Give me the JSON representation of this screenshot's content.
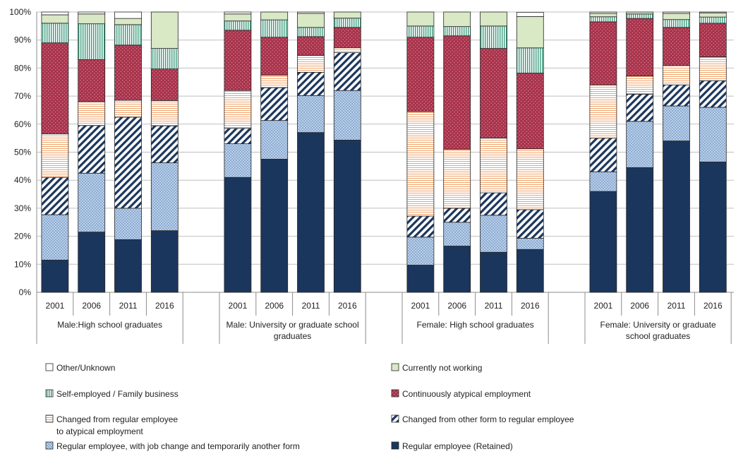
{
  "chart_data": {
    "type": "bar",
    "stacked": true,
    "percent": true,
    "ylim": [
      0,
      100
    ],
    "y_ticks": [
      "0%",
      "10%",
      "20%",
      "30%",
      "40%",
      "50%",
      "60%",
      "70%",
      "80%",
      "90%",
      "100%"
    ],
    "grid": true,
    "legend_position": "bottom",
    "groups": [
      {
        "label": "Male:High school graduates",
        "years": [
          "2001",
          "2006",
          "2011",
          "2016"
        ]
      },
      {
        "label": "Male: University or graduate school graduates",
        "label_lines": [
          "Male: University or graduate school",
          "graduates"
        ],
        "years": [
          "2001",
          "2006",
          "2011",
          "2016"
        ]
      },
      {
        "label": "Female: High school graduates",
        "years": [
          "2001",
          "2006",
          "2011",
          "2016"
        ]
      },
      {
        "label": "Female: University or graduate school graduates",
        "label_lines": [
          "Female: University or graduate",
          "school graduates"
        ],
        "years": [
          "2001",
          "2006",
          "2011",
          "2016"
        ]
      }
    ],
    "series": [
      {
        "key": "retained",
        "name": "Regular employee (Retained)",
        "color": "#1b365d",
        "pattern": "solid",
        "values": [
          [
            11.5,
            21.5,
            18.8,
            22
          ],
          [
            41,
            47.5,
            57,
            54.3
          ],
          [
            9.7,
            16.5,
            14.3,
            15.3
          ],
          [
            36,
            44.5,
            54,
            46.5
          ]
        ]
      },
      {
        "key": "job_change",
        "name": "Regular employee,  with job change and temporarily another form",
        "color": "#9dbbe0",
        "pattern": "dots",
        "values": [
          [
            16.2,
            21,
            11.2,
            24.2
          ],
          [
            12,
            13.8,
            13.2,
            17.7
          ],
          [
            10,
            8.5,
            13.2,
            4
          ],
          [
            7,
            16.5,
            12.5,
            19.5
          ]
        ]
      },
      {
        "key": "other_to_regular",
        "name": "Changed from other form to regular employee",
        "color": "#1b365d",
        "pattern": "diagonal",
        "values": [
          [
            13.3,
            17,
            32.5,
            13.2
          ],
          [
            5.5,
            11.7,
            8.3,
            13.5
          ],
          [
            7.5,
            5,
            8,
            10.2
          ],
          [
            12,
            9.7,
            7.5,
            9.5
          ]
        ]
      },
      {
        "key": "regular_to_atypical",
        "name": "Changed from regular employee to atypical employment",
        "name_lines": [
          "Changed from regular employee",
          "to atypical employment"
        ],
        "color": "#f4b183",
        "pattern": "hlines",
        "values": [
          [
            15.5,
            8.5,
            6,
            9
          ],
          [
            13.5,
            4.5,
            6,
            1.8
          ],
          [
            37.3,
            21,
            19.5,
            21.7
          ],
          [
            19,
            6.5,
            7,
            8.5
          ]
        ]
      },
      {
        "key": "atypical",
        "name": "Continuously atypical employment",
        "color": "#a8334b",
        "pattern": "dots",
        "values": [
          [
            32.5,
            15,
            19.7,
            11.3
          ],
          [
            21.5,
            13.5,
            6.7,
            7.2
          ],
          [
            26.5,
            40.5,
            32,
            27
          ]
        ],
        "values_female_univ": [
          22.5,
          20.5,
          13.5,
          12
        ]
      },
      {
        "key": "self_employed",
        "name": "Self-employed / Family business",
        "color": "#5eb79c",
        "pattern": "vlines",
        "values": [
          [
            7,
            12.8,
            7.3,
            7.3
          ],
          [
            3.3,
            6.2,
            3.3,
            3.3
          ],
          [
            4,
            3.3,
            8,
            9
          ],
          [
            1.8,
            1.6,
            2.8,
            2.2
          ]
        ]
      },
      {
        "key": "not_working",
        "name": "Currently not working",
        "color": "#d9e8c5",
        "pattern": "solid",
        "values": [
          [
            3,
            3.5,
            2.2,
            13
          ],
          [
            2.5,
            2.8,
            5,
            2.2
          ],
          [
            5,
            5.2,
            5,
            11.2
          ],
          [
            1.2,
            0.7,
            2.2,
            1.5
          ]
        ]
      },
      {
        "key": "other_unknown",
        "name": "Other/Unknown",
        "color": "#ffffff",
        "pattern": "solid",
        "values": [
          [
            1,
            0.7,
            2.3,
            0
          ],
          [
            0.7,
            0,
            0.5,
            0
          ],
          [
            0,
            0,
            0,
            1.5
          ],
          [
            0.5,
            0,
            0.5,
            0.3
          ]
        ]
      }
    ]
  }
}
